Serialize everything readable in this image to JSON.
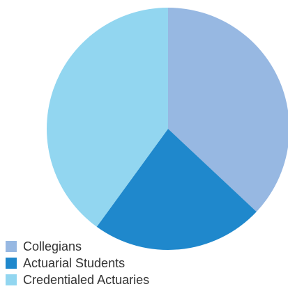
{
  "chart_data": {
    "type": "pie",
    "title": "",
    "categories": [
      "Collegians",
      "Actuarial Students",
      "Credentialed Actuaries"
    ],
    "values": [
      37,
      23,
      40
    ],
    "colors": [
      "#97b8e2",
      "#1f88cc",
      "#92d6f0"
    ],
    "legend_position": "bottom-left",
    "start_angle": "12 o'clock",
    "direction": "clockwise"
  }
}
